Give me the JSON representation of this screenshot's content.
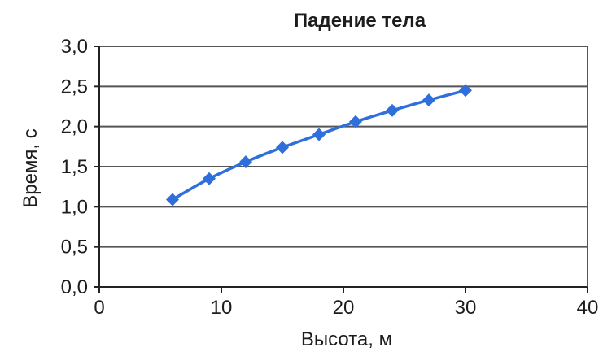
{
  "chart_data": {
    "type": "line",
    "title": "Падение тела",
    "xlabel": "Высота, м",
    "ylabel": "Время, с",
    "xlim": [
      0,
      40
    ],
    "ylim": [
      0,
      3.0
    ],
    "xticks": [
      "0",
      "10",
      "20",
      "30",
      "40"
    ],
    "yticks": [
      "0,0",
      "0,5",
      "1,0",
      "1,5",
      "2,0",
      "2,5",
      "3,0"
    ],
    "grid": "horizontal",
    "series": [
      {
        "marker": "diamond",
        "color": "#2f6fdc",
        "x": [
          6,
          9,
          12,
          15,
          18,
          21,
          24,
          27,
          30
        ],
        "y": [
          1.09,
          1.35,
          1.56,
          1.74,
          1.9,
          2.06,
          2.2,
          2.33,
          2.45
        ]
      }
    ]
  },
  "colors": {
    "line": "#2f6fdc",
    "grid": "#555555",
    "axis": "#222222",
    "text": "#1c1c1c"
  }
}
